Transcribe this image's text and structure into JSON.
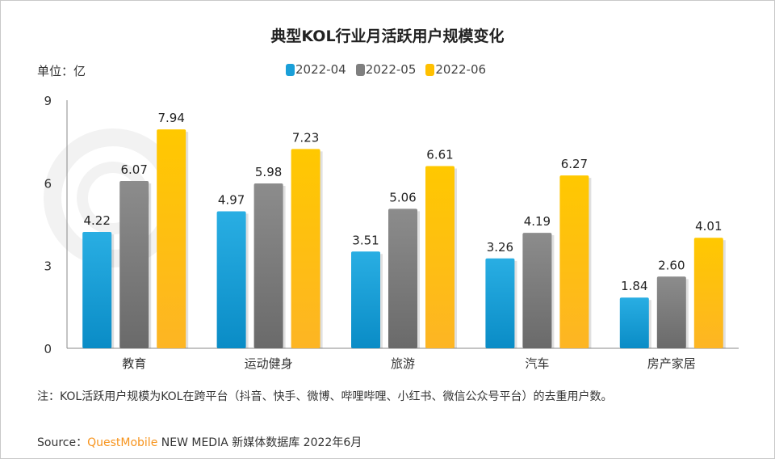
{
  "chart_data": {
    "type": "bar",
    "title": "典型KOL行业月活跃用户规模变化",
    "unit_label": "单位：亿",
    "categories": [
      "教育",
      "运动健身",
      "旅游",
      "汽车",
      "房产家居"
    ],
    "series": [
      {
        "name": "2022-04",
        "color": "#1a9fd8",
        "values": [
          4.22,
          4.97,
          3.51,
          3.26,
          1.84
        ]
      },
      {
        "name": "2022-05",
        "color": "#7f7f7f",
        "values": [
          6.07,
          5.98,
          5.06,
          4.19,
          2.6
        ]
      },
      {
        "name": "2022-06",
        "color": "#ffc000",
        "values": [
          7.94,
          7.23,
          6.61,
          6.27,
          4.01
        ]
      }
    ],
    "ylim": [
      0,
      9
    ],
    "yticks": [
      0,
      3,
      6,
      9
    ],
    "grid": false,
    "legend_position": "top-center",
    "data_labels": true
  },
  "note": "注：KOL活跃用户规模为KOL在跨平台（抖音、快手、微博、哔哩哔哩、小红书、微信公众号平台）的去重用户数。",
  "source": {
    "prefix": "Source：",
    "brand": "QuestMobile",
    "rest": " NEW MEDIA 新媒体数据库 2022年6月"
  },
  "watermark": "QUESTMOBILE"
}
